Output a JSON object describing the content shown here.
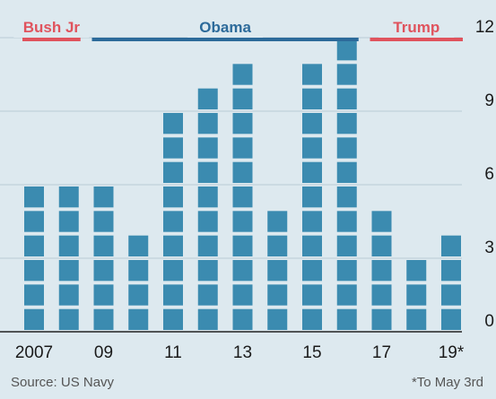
{
  "chart_data": {
    "type": "bar",
    "categories": [
      "2007",
      "2008",
      "2009",
      "2010",
      "2011",
      "2012",
      "2013",
      "2014",
      "2015",
      "2016",
      "2017",
      "2018",
      "2019"
    ],
    "x_tick_labels": [
      "2007",
      "09",
      "11",
      "13",
      "15",
      "17",
      "19*"
    ],
    "values": [
      6,
      6,
      6,
      4,
      9,
      10,
      11,
      5,
      11,
      12,
      5,
      3,
      4
    ],
    "yticks": [
      0,
      3,
      6,
      9,
      12
    ],
    "ylim": [
      0,
      12
    ],
    "grid": true,
    "periods": [
      {
        "label": "Bush Jr",
        "color": "#e0535d",
        "from": "2007",
        "to": "2008"
      },
      {
        "label": "Obama",
        "color": "#2c6a9a",
        "from": "2009",
        "to": "2016"
      },
      {
        "label": "Trump",
        "color": "#e0535d",
        "from": "2017",
        "to": "2019"
      }
    ]
  },
  "colors": {
    "bar": "#3b8bb0",
    "background": "#dde9ef",
    "grid": "#b9ccd6"
  },
  "source": "Source: US Navy",
  "footnote": "*To May 3rd"
}
